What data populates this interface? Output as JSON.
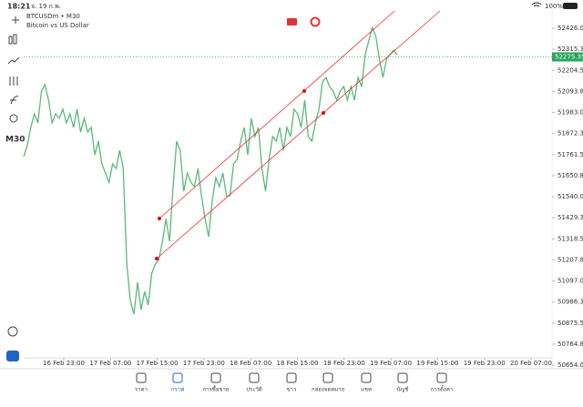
{
  "status_bar": {
    "time": "18:21",
    "date": "จ. 19 ก.พ.",
    "battery": "100%"
  },
  "chart_data": {
    "type": "line",
    "title": "BTCUSDm • M30",
    "subtitle": "Bitcoin vs US Dollar",
    "timeframe": "M30",
    "color": "#5cb87a",
    "values": [
      51751,
      51808,
      51904,
      51976,
      51928,
      52095,
      52129,
      52048,
      51928,
      51976,
      51952,
      52000,
      51928,
      51976,
      51904,
      52000,
      51880,
      51952,
      51880,
      51904,
      51760,
      51832,
      51712,
      51664,
      51616,
      51712,
      51688,
      51784,
      51688,
      51185,
      50994,
      50922,
      51090,
      50946,
      51042,
      50970,
      51137,
      51185,
      51209,
      51305,
      51425,
      51305,
      51593,
      51832,
      51784,
      51569,
      51664,
      51616,
      51593,
      51688,
      51545,
      51425,
      51329,
      51521,
      51640,
      51593,
      51664,
      51545,
      51545,
      51712,
      51736,
      51832,
      51904,
      51760,
      51952,
      51856,
      51904,
      51688,
      51569,
      51736,
      51856,
      51832,
      51904,
      51784,
      51904,
      51856,
      52000,
      51976,
      51904,
      52048,
      51856,
      51832,
      51928,
      52000,
      52143,
      52167,
      52119,
      52095,
      52048,
      52095,
      52119,
      52048,
      52119,
      52048,
      52167,
      52119,
      52287,
      52359,
      52431,
      52383,
      52263,
      52167,
      52263,
      52287,
      52311,
      52287
    ],
    "current_price": 52275.35,
    "current_color": "#26a65b",
    "ylim": [
      50640,
      52540
    ],
    "yticks": [
      52426.05,
      {
        "value": 52315.3,
        "label": "52315.30"
      },
      52204.55,
      {
        "value": 52093.8,
        "label": "52093.80"
      },
      51983.05,
      {
        "value": 51872.3,
        "label": "51872.30"
      },
      51761.55,
      {
        "value": 51650.8,
        "label": "51650.80"
      },
      51540.05,
      {
        "value": 51429.3,
        "label": "51429.30"
      },
      51318.55,
      {
        "value": 51207.8,
        "label": "51207.80"
      },
      51097.05,
      {
        "value": 50986.3,
        "label": "50986.30"
      },
      50875.55,
      {
        "value": 50764.8,
        "label": "50764.80"
      },
      50654.05
    ],
    "x_labels": [
      "16 Feb 23:00",
      "17 Feb 07:00",
      "17 Feb 15:00",
      "17 Feb 23:00",
      "18 Feb 07:00",
      "18 Feb 15:00",
      "18 Feb 23:00",
      "19 Feb 07:00",
      "19 Feb 15:00",
      "19 Feb 23:00",
      "20 Feb 07:00"
    ]
  },
  "nav": [
    "ราคา",
    "กราฟ",
    "การซื้อขาย",
    "ประวัติ",
    "ข่าว",
    "กล่องจดหมาย",
    "แชท",
    "บัญชี",
    "การตั้งค่า"
  ]
}
